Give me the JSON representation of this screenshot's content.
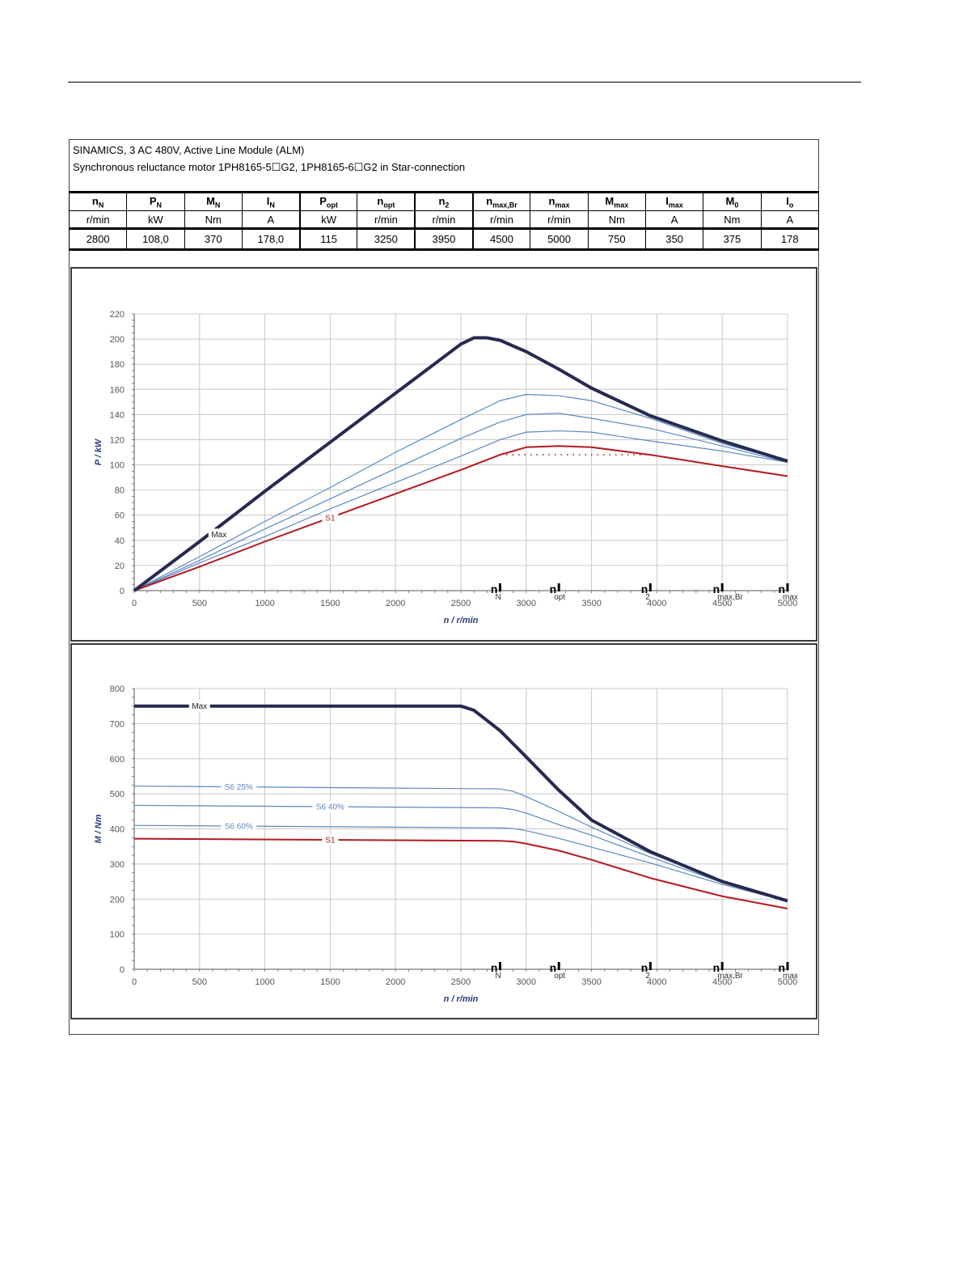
{
  "header": {
    "line1": "SINAMICS, 3 AC 480V, Active Line Module (ALM)",
    "line2": "Synchronous reluctance motor  1PH8165-5☐G2,  1PH8165-6☐G2   in Star-connection"
  },
  "spec_table": {
    "columns": [
      {
        "sym": "n",
        "sub": "N",
        "unit": "r/min",
        "value": "2800"
      },
      {
        "sym": "P",
        "sub": "N",
        "unit": "kW",
        "value": "108,0"
      },
      {
        "sym": "M",
        "sub": "N",
        "unit": "Nm",
        "value": "370"
      },
      {
        "sym": "I",
        "sub": "N",
        "unit": "A",
        "value": "178,0"
      },
      {
        "sym": "P",
        "sub": "opt",
        "unit": "kW",
        "value": "115"
      },
      {
        "sym": "n",
        "sub": "opt",
        "unit": "r/min",
        "value": "3250"
      },
      {
        "sym": "n",
        "sub": "2",
        "unit": "r/min",
        "value": "3950"
      },
      {
        "sym": "n",
        "sub": "max,Br",
        "unit": "r/min",
        "value": "4500"
      },
      {
        "sym": "n",
        "sub": "max",
        "unit": "r/min",
        "value": "5000"
      },
      {
        "sym": "M",
        "sub": "max",
        "unit": "Nm",
        "value": "750"
      },
      {
        "sym": "I",
        "sub": "max",
        "unit": "A",
        "value": "350"
      },
      {
        "sym": "M",
        "sub": "0",
        "unit": "Nm",
        "value": "375"
      },
      {
        "sym": "I",
        "sub": "o",
        "unit": "A",
        "value": "178"
      }
    ]
  },
  "colors": {
    "max": "#262a4f",
    "s1": "#b3191f",
    "s6": "#5b87bf",
    "grid": "#c8c8c8",
    "axis_label": "#2b3a7a"
  },
  "chart_data": [
    {
      "type": "line",
      "title": "",
      "xlabel": "n / r/min",
      "ylabel": "P / kW",
      "xlim": [
        0,
        5000
      ],
      "ylim": [
        0,
        220
      ],
      "xticks": [
        0,
        500,
        1000,
        1500,
        2000,
        2500,
        3000,
        3500,
        4000,
        4500,
        5000
      ],
      "yticks": [
        0,
        20,
        40,
        60,
        80,
        100,
        120,
        140,
        160,
        180,
        200,
        220
      ],
      "grid": true,
      "speed_markers": [
        {
          "x": 2800,
          "main": "n",
          "sub": "N"
        },
        {
          "x": 3250,
          "main": "n",
          "sub": "opt"
        },
        {
          "x": 3950,
          "main": "n",
          "sub": "2"
        },
        {
          "x": 4500,
          "main": "n",
          "sub": "max,Br"
        },
        {
          "x": 5000,
          "main": "n",
          "sub": "max"
        }
      ],
      "series": [
        {
          "name": "Max",
          "style": "max",
          "label_x": 500,
          "x": [
            0,
            500,
            1000,
            1500,
            2000,
            2500,
            2600,
            2700,
            2800,
            3000,
            3250,
            3500,
            3950,
            4500,
            5000
          ],
          "y": [
            0,
            39,
            79,
            118,
            157,
            196,
            201,
            201,
            199,
            190,
            176,
            161,
            139,
            119,
            103
          ]
        },
        {
          "name": "",
          "style": "s6",
          "x": [
            0,
            500,
            1000,
            1500,
            2000,
            2500,
            2800,
            3000,
            3250,
            3500,
            3950,
            4500,
            5000
          ],
          "y": [
            0,
            27,
            55,
            82,
            110,
            136,
            151,
            156,
            155,
            151,
            137,
            117,
            103
          ]
        },
        {
          "name": "",
          "style": "s6",
          "x": [
            0,
            500,
            1000,
            1500,
            2000,
            2500,
            2800,
            3000,
            3250,
            3500,
            3950,
            4500,
            5000
          ],
          "y": [
            0,
            24,
            49,
            73,
            97,
            121,
            134,
            140,
            141,
            137,
            129,
            115,
            102
          ]
        },
        {
          "name": "",
          "style": "s6",
          "x": [
            0,
            500,
            1000,
            1500,
            2000,
            2500,
            2800,
            3000,
            3250,
            3500,
            3950,
            4500,
            5000
          ],
          "y": [
            0,
            22,
            43,
            65,
            86,
            107,
            120,
            126,
            127,
            126,
            119,
            111,
            102
          ]
        },
        {
          "name": "S1",
          "style": "s1",
          "label_x": 1500,
          "x": [
            0,
            500,
            1000,
            1500,
            2000,
            2500,
            2800,
            3000,
            3250,
            3500,
            3950,
            4500,
            5000
          ],
          "y": [
            0,
            19,
            39,
            58,
            77,
            96,
            108,
            114,
            115,
            114,
            108,
            99,
            91
          ]
        }
      ],
      "reference_line": {
        "style": "dotted",
        "y": 108,
        "x_from": 2800,
        "x_to": 3950
      }
    },
    {
      "type": "line",
      "title": "",
      "xlabel": "n / r/min",
      "ylabel": "M / Nm",
      "xlim": [
        0,
        5000
      ],
      "ylim": [
        0,
        800
      ],
      "xticks": [
        0,
        500,
        1000,
        1500,
        2000,
        2500,
        3000,
        3500,
        4000,
        4500,
        5000
      ],
      "yticks": [
        0,
        100,
        200,
        300,
        400,
        500,
        600,
        700,
        800
      ],
      "grid": true,
      "speed_markers": [
        {
          "x": 2800,
          "main": "n",
          "sub": "N"
        },
        {
          "x": 3250,
          "main": "n",
          "sub": "opt"
        },
        {
          "x": 3950,
          "main": "n",
          "sub": "2"
        },
        {
          "x": 4500,
          "main": "n",
          "sub": "max,Br"
        },
        {
          "x": 5000,
          "main": "n",
          "sub": "max"
        }
      ],
      "series": [
        {
          "name": "Max",
          "style": "max",
          "label_x": 500,
          "x": [
            0,
            2500,
            2600,
            2800,
            3000,
            3250,
            3500,
            3950,
            4500,
            5000
          ],
          "y": [
            750,
            750,
            738,
            680,
            605,
            510,
            425,
            335,
            250,
            195
          ]
        },
        {
          "name": "S6 25%",
          "style": "s6",
          "label_x": 800,
          "x": [
            0,
            2800,
            2900,
            3000,
            3250,
            3500,
            3950,
            4500,
            5000
          ],
          "y": [
            522,
            514,
            507,
            492,
            450,
            405,
            330,
            250,
            196
          ]
        },
        {
          "name": "S6 40%",
          "style": "s6",
          "label_x": 1500,
          "x": [
            0,
            2800,
            2900,
            3000,
            3250,
            3500,
            3950,
            4500,
            5000
          ],
          "y": [
            467,
            460,
            455,
            445,
            412,
            382,
            320,
            247,
            195
          ]
        },
        {
          "name": "S6 60%",
          "style": "s6",
          "label_x": 800,
          "x": [
            0,
            2800,
            2900,
            3000,
            3250,
            3500,
            3950,
            4500,
            5000
          ],
          "y": [
            410,
            403,
            401,
            395,
            373,
            348,
            303,
            242,
            194
          ]
        },
        {
          "name": "S1",
          "style": "s1",
          "label_x": 1500,
          "x": [
            0,
            2800,
            2900,
            3000,
            3250,
            3500,
            3950,
            4500,
            5000
          ],
          "y": [
            372,
            366,
            364,
            358,
            338,
            312,
            260,
            208,
            173
          ]
        }
      ]
    }
  ]
}
